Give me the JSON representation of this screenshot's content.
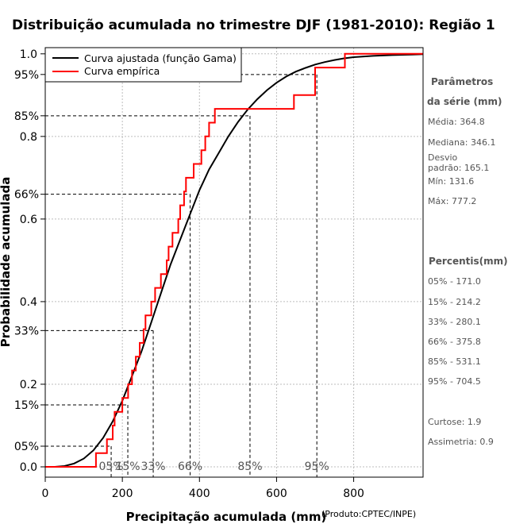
{
  "chart_data": {
    "type": "line",
    "title": "Distribuição acumulada no trimestre DJF (1981-2010): Região 1",
    "xlabel": "Precipitação acumulada (mm)",
    "ylabel": "Probabilidade acumulada",
    "credit": "(Produto:CPTEC/INPE)",
    "xlim": [
      0,
      980
    ],
    "ylim": [
      -0.025,
      1.015
    ],
    "x_ticks": [
      0,
      200,
      400,
      600,
      800
    ],
    "x_tick_labels": [
      "0",
      "200",
      "400",
      "600",
      "800"
    ],
    "y_ticks": [
      0.0,
      0.2,
      0.4,
      0.6,
      0.8,
      1.0
    ],
    "y_tick_labels": [
      "0.0",
      "0.2",
      "0.4",
      "0.6",
      "0.8",
      "1.0"
    ],
    "grid": true,
    "legend": {
      "position": "top-left",
      "entries": [
        {
          "label": "Curva ajustada (função Gama)",
          "color": "#000000"
        },
        {
          "label": "Curva empírica",
          "color": "#ff0000"
        }
      ]
    },
    "series": [
      {
        "name": "Curva ajustada (função Gama)",
        "color": "#000000",
        "x": [
          0,
          25,
          50,
          75,
          100,
          125,
          150,
          175,
          200,
          225,
          250,
          275,
          300,
          325,
          350,
          375,
          400,
          425,
          450,
          475,
          500,
          525,
          550,
          575,
          600,
          625,
          650,
          675,
          700,
          725,
          750,
          775,
          800,
          850,
          900,
          950,
          980
        ],
        "y": [
          0.0,
          0.0,
          0.002,
          0.008,
          0.02,
          0.04,
          0.07,
          0.11,
          0.16,
          0.22,
          0.28,
          0.35,
          0.42,
          0.49,
          0.55,
          0.61,
          0.67,
          0.72,
          0.76,
          0.8,
          0.835,
          0.865,
          0.89,
          0.912,
          0.93,
          0.945,
          0.957,
          0.966,
          0.974,
          0.98,
          0.985,
          0.989,
          0.992,
          0.995,
          0.997,
          0.998,
          0.999
        ]
      },
      {
        "name": "Curva empírica",
        "color": "#ff0000",
        "x": [
          131.6,
          140,
          160,
          175,
          180,
          200,
          215,
          225,
          235,
          245,
          255,
          260,
          275,
          285,
          300,
          315,
          320,
          330,
          345,
          350,
          360,
          365,
          375,
          385,
          395,
          405,
          410,
          415,
          425,
          435,
          440,
          510,
          555,
          645,
          700,
          710,
          777.2
        ],
        "y": [
          0.0333,
          0.0333,
          0.0667,
          0.1,
          0.1333,
          0.1667,
          0.2,
          0.2333,
          0.2667,
          0.3,
          0.3333,
          0.3667,
          0.4,
          0.4333,
          0.4667,
          0.5,
          0.5333,
          0.5667,
          0.6,
          0.6333,
          0.6667,
          0.7,
          0.7,
          0.7333,
          0.7333,
          0.7667,
          0.7667,
          0.8,
          0.8333,
          0.8333,
          0.8667,
          0.8667,
          0.8667,
          0.9,
          0.9667,
          0.9667,
          1.0
        ]
      }
    ],
    "percentiles": [
      {
        "label": "05%",
        "p": 0.05,
        "value": 171.0
      },
      {
        "label": "15%",
        "p": 0.15,
        "value": 214.2
      },
      {
        "label": "33%",
        "p": 0.33,
        "value": 280.1
      },
      {
        "label": "66%",
        "p": 0.66,
        "value": 375.8
      },
      {
        "label": "85%",
        "p": 0.85,
        "value": 531.1
      },
      {
        "label": "95%",
        "p": 0.95,
        "value": 704.5
      }
    ]
  },
  "side_panel": {
    "params_title_1": "Parâmetros",
    "params_title_2": "da série (mm)",
    "media": "Média: 364.8",
    "mediana": "Mediana: 346.1",
    "desvio_1": "Desvio",
    "desvio_2": "padrão: 165.1",
    "min": "Mín: 131.6",
    "max": "Máx: 777.2",
    "percentis_title": "Percentis(mm)",
    "p05": "05% - 171.0",
    "p15": "15% - 214.2",
    "p33": "33% - 280.1",
    "p66": "66% - 375.8",
    "p85": "85% - 531.1",
    "p95": "95% - 704.5",
    "curtose": "Curtose: 1.9",
    "assimetria": "Assimetria: 0.9"
  }
}
